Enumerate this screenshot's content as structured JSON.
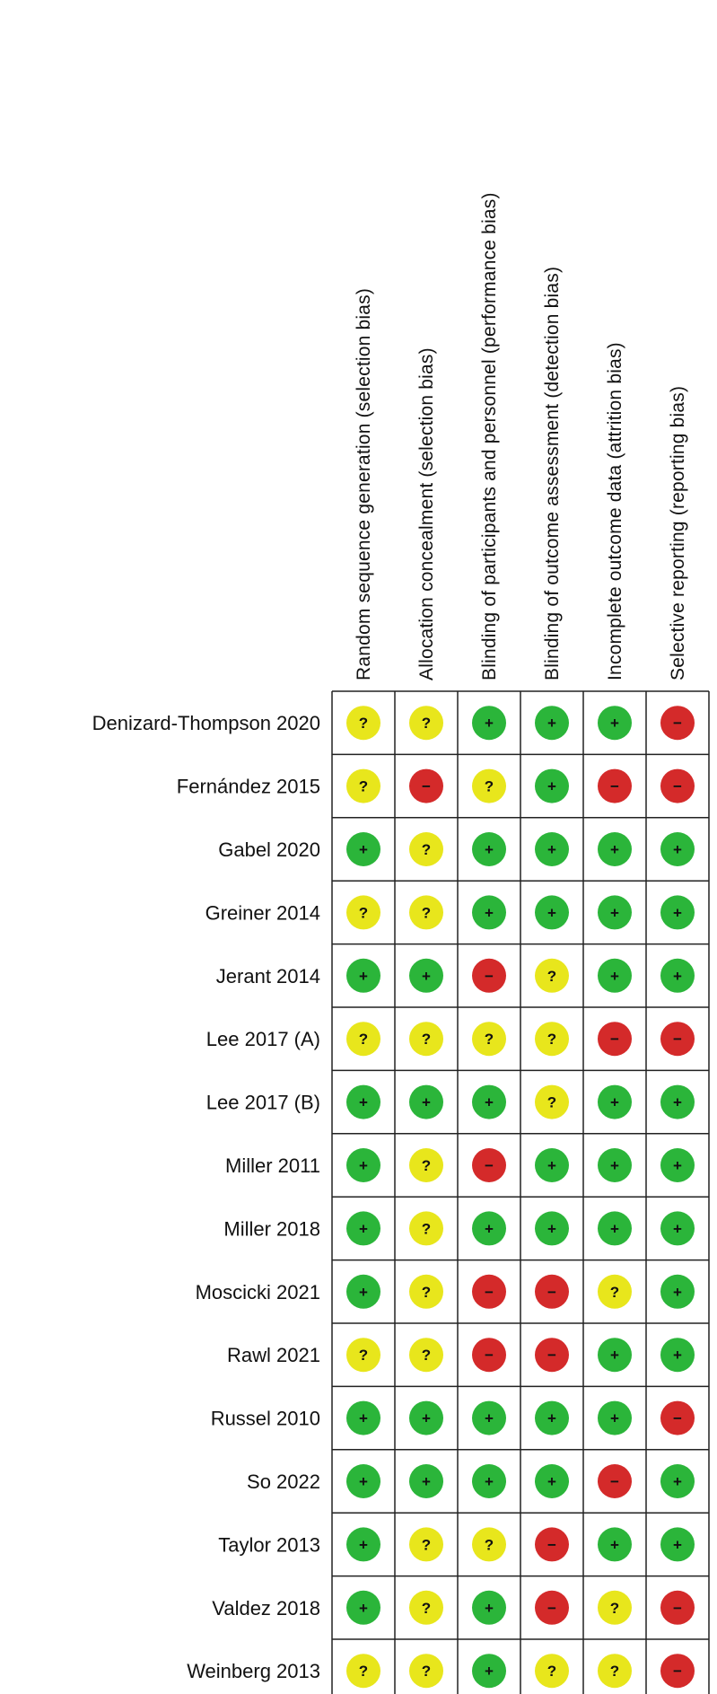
{
  "chart_data": {
    "type": "table",
    "domains": [
      "Random sequence generation (selection bias)",
      "Allocation concealment (selection bias)",
      "Blinding of participants and personnel (performance bias)",
      "Blinding of outcome assessment (detection bias)",
      "Incomplete outcome data (attrition bias)",
      "Selective reporting (reporting bias)"
    ],
    "studies": [
      "Denizard-Thompson 2020",
      "Fernández 2015",
      "Gabel 2020",
      "Greiner 2014",
      "Jerant 2014",
      "Lee 2017 (A)",
      "Lee 2017 (B)",
      "Miller 2011",
      "Miller 2018",
      "Moscicki 2021",
      "Rawl 2021",
      "Russel 2010",
      "So 2022",
      "Taylor 2013",
      "Valdez 2018",
      "Weinberg 2013"
    ],
    "judgements": [
      [
        "?",
        "?",
        "+",
        "+",
        "+",
        "-"
      ],
      [
        "?",
        "-",
        "?",
        "+",
        "-",
        "-"
      ],
      [
        "+",
        "?",
        "+",
        "+",
        "+",
        "+"
      ],
      [
        "?",
        "?",
        "+",
        "+",
        "+",
        "+"
      ],
      [
        "+",
        "+",
        "-",
        "?",
        "+",
        "+"
      ],
      [
        "?",
        "?",
        "?",
        "?",
        "-",
        "-"
      ],
      [
        "+",
        "+",
        "+",
        "?",
        "+",
        "+"
      ],
      [
        "+",
        "?",
        "-",
        "+",
        "+",
        "+"
      ],
      [
        "+",
        "?",
        "+",
        "+",
        "+",
        "+"
      ],
      [
        "+",
        "?",
        "-",
        "-",
        "?",
        "+"
      ],
      [
        "?",
        "?",
        "-",
        "-",
        "+",
        "+"
      ],
      [
        "+",
        "+",
        "+",
        "+",
        "+",
        "-"
      ],
      [
        "+",
        "+",
        "+",
        "+",
        "-",
        "+"
      ],
      [
        "+",
        "?",
        "?",
        "-",
        "+",
        "+"
      ],
      [
        "+",
        "?",
        "+",
        "-",
        "?",
        "-"
      ],
      [
        "?",
        "?",
        "+",
        "?",
        "?",
        "-"
      ]
    ],
    "symbols": {
      "+": "+",
      "-": "−",
      "?": "?"
    },
    "colors": {
      "+": "#2bb53a",
      "-": "#d42a2a",
      "?": "#e8e61c",
      "grid": "#222222"
    }
  }
}
